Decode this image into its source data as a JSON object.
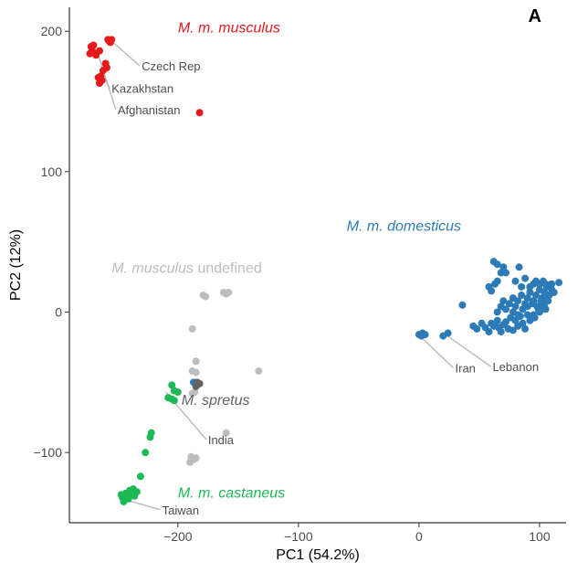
{
  "chart_data": {
    "type": "scatter",
    "panel_label": "A",
    "xlabel": "PC1 (54.2%)",
    "ylabel": "PC2 (12%)",
    "xlim": [
      -290,
      122
    ],
    "ylim": [
      -150,
      217
    ],
    "xticks": [
      -200,
      -100,
      0,
      100
    ],
    "yticks": [
      -100,
      0,
      100,
      200
    ],
    "xtick_labels": [
      "−200",
      "−100",
      "0",
      "100"
    ],
    "ytick_labels": [
      "−100",
      "0",
      "100",
      "200"
    ],
    "grid": false,
    "colors": {
      "musculus": "#e41a1c",
      "domesticus": "#2c7bb6",
      "undefined": "#bdbdbd",
      "spretus": "#636363",
      "castaneus": "#1db954",
      "annotation_line": "#bdbdbd"
    },
    "group_labels": [
      {
        "id": "musculus",
        "italic": "M. m. musculus",
        "plain": "",
        "x": -200,
        "y": 199,
        "anchor": "start"
      },
      {
        "id": "domesticus",
        "italic": "M. m. domesticus",
        "plain": "",
        "x": -60,
        "y": 58,
        "anchor": "start"
      },
      {
        "id": "undefined",
        "italic": "M. musculus",
        "plain": " undefined",
        "x": -255,
        "y": 28,
        "anchor": "start"
      },
      {
        "id": "spretus",
        "italic": "M. spretus",
        "plain": "",
        "x": -197,
        "y": -66,
        "anchor": "start"
      },
      {
        "id": "castaneus",
        "italic": "M. m. castaneus",
        "plain": "",
        "x": -200,
        "y": -132,
        "anchor": "start"
      }
    ],
    "annotations": [
      {
        "text": "Czech Rep",
        "point": [
          -255,
          193
        ],
        "label": [
          -230,
          172
        ],
        "anchor": "start"
      },
      {
        "text": "Kazakhstan",
        "point": [
          -263,
          170
        ],
        "label": [
          -255,
          156
        ],
        "anchor": "start"
      },
      {
        "text": "Afghanistan",
        "point": [
          -266,
          183
        ],
        "label": [
          -250,
          141
        ],
        "anchor": "start"
      },
      {
        "text": "Iran",
        "point": [
          2,
          -18
        ],
        "label": [
          30,
          -43
        ],
        "anchor": "start"
      },
      {
        "text": "Lebanon",
        "point": [
          22,
          -16
        ],
        "label": [
          61,
          -42
        ],
        "anchor": "start"
      },
      {
        "text": "India",
        "point": [
          -210,
          -57
        ],
        "label": [
          -175,
          -94
        ],
        "anchor": "start"
      },
      {
        "text": "Taiwan",
        "point": [
          -242,
          -134
        ],
        "label": [
          -213,
          -144
        ],
        "anchor": "start"
      }
    ],
    "series": [
      {
        "name": "M. m. musculus",
        "id": "musculus",
        "points": [
          [
            -272,
            189
          ],
          [
            -271,
            186
          ],
          [
            -270,
            190
          ],
          [
            -268,
            183
          ],
          [
            -273,
            184
          ],
          [
            -265,
            186
          ],
          [
            -258,
            194
          ],
          [
            -256,
            192
          ],
          [
            -257,
            193
          ],
          [
            -255,
            194
          ],
          [
            -260,
            177
          ],
          [
            -262,
            172
          ],
          [
            -259,
            174
          ],
          [
            -264,
            168
          ],
          [
            -266,
            167
          ],
          [
            -263,
            165
          ],
          [
            -265,
            163
          ],
          [
            -182,
            142
          ]
        ]
      },
      {
        "name": "M. m. domesticus",
        "id": "domesticus",
        "points": [
          [
            -187,
            -50
          ],
          [
            0,
            -16
          ],
          [
            3,
            -15
          ],
          [
            5,
            -16
          ],
          [
            2,
            -17
          ],
          [
            20,
            -17
          ],
          [
            24,
            -15
          ],
          [
            36,
            5
          ],
          [
            45,
            -10
          ],
          [
            48,
            -12
          ],
          [
            52,
            -8
          ],
          [
            55,
            -11
          ],
          [
            58,
            -14
          ],
          [
            60,
            -8
          ],
          [
            62,
            -10
          ],
          [
            65,
            -6
          ],
          [
            66,
            -11
          ],
          [
            68,
            -14
          ],
          [
            70,
            -9
          ],
          [
            72,
            -7
          ],
          [
            74,
            -12
          ],
          [
            76,
            -4
          ],
          [
            78,
            -13
          ],
          [
            80,
            -6
          ],
          [
            82,
            -10
          ],
          [
            84,
            -3
          ],
          [
            86,
            -8
          ],
          [
            88,
            -12
          ],
          [
            90,
            -2
          ],
          [
            92,
            -6
          ],
          [
            95,
            -2
          ],
          [
            65,
            0
          ],
          [
            68,
            4
          ],
          [
            70,
            8
          ],
          [
            72,
            2
          ],
          [
            75,
            6
          ],
          [
            78,
            10
          ],
          [
            80,
            4
          ],
          [
            82,
            8
          ],
          [
            85,
            12
          ],
          [
            88,
            6
          ],
          [
            90,
            10
          ],
          [
            92,
            14
          ],
          [
            95,
            8
          ],
          [
            97,
            12
          ],
          [
            100,
            16
          ],
          [
            102,
            10
          ],
          [
            104,
            14
          ],
          [
            106,
            18
          ],
          [
            108,
            12
          ],
          [
            110,
            16
          ],
          [
            98,
            4
          ],
          [
            100,
            0
          ],
          [
            103,
            6
          ],
          [
            105,
            2
          ],
          [
            107,
            8
          ],
          [
            96,
            -4
          ],
          [
            99,
            2
          ],
          [
            101,
            8
          ],
          [
            104,
            4
          ],
          [
            106,
            10
          ],
          [
            92,
            18
          ],
          [
            95,
            20
          ],
          [
            97,
            22
          ],
          [
            100,
            20
          ],
          [
            103,
            22
          ],
          [
            105,
            20
          ],
          [
            108,
            18
          ],
          [
            110,
            20
          ],
          [
            112,
            14
          ],
          [
            116,
            21
          ],
          [
            60,
            15
          ],
          [
            63,
            20
          ],
          [
            58,
            18
          ],
          [
            65,
            22
          ],
          [
            68,
            28
          ],
          [
            62,
            36
          ],
          [
            65,
            34
          ],
          [
            70,
            32
          ],
          [
            72,
            28
          ],
          [
            83,
            32
          ],
          [
            80,
            22
          ],
          [
            85,
            18
          ],
          [
            88,
            24
          ],
          [
            78,
            0
          ],
          [
            82,
            -2
          ],
          [
            86,
            2
          ],
          [
            90,
            4
          ],
          [
            94,
            6
          ]
        ]
      },
      {
        "name": "M. musculus undefined",
        "id": "undefined",
        "points": [
          [
            -162,
            14
          ],
          [
            -158,
            14
          ],
          [
            -160,
            13
          ],
          [
            -177,
            11
          ],
          [
            -179,
            12
          ],
          [
            -188,
            -12
          ],
          [
            -133,
            -42
          ],
          [
            -185,
            -35
          ],
          [
            -188,
            -42
          ],
          [
            -185,
            -43
          ],
          [
            -186,
            -57
          ],
          [
            -188,
            -58
          ],
          [
            -160,
            -86
          ],
          [
            -187,
            -105
          ],
          [
            -190,
            -107
          ],
          [
            -185,
            -104
          ],
          [
            -189,
            -103
          ]
        ]
      },
      {
        "name": "M. spretus",
        "id": "spretus",
        "points": [
          [
            -182,
            -51
          ],
          [
            -185,
            -53
          ],
          [
            -184,
            -50
          ]
        ]
      },
      {
        "name": "M. m. castaneus",
        "id": "castaneus",
        "points": [
          [
            -205,
            -52
          ],
          [
            -203,
            -56
          ],
          [
            -208,
            -61
          ],
          [
            -205,
            -62
          ],
          [
            -203,
            -63
          ],
          [
            -200,
            -57
          ],
          [
            -222,
            -86
          ],
          [
            -223,
            -89
          ],
          [
            -227,
            -100
          ],
          [
            -231,
            -117
          ],
          [
            -237,
            -126
          ],
          [
            -240,
            -127
          ],
          [
            -243,
            -131
          ],
          [
            -246,
            -132
          ],
          [
            -245,
            -135
          ],
          [
            -241,
            -133
          ],
          [
            -236,
            -131
          ],
          [
            -234,
            -128
          ],
          [
            -243,
            -129
          ],
          [
            -239,
            -130
          ],
          [
            -247,
            -130
          ]
        ]
      }
    ]
  }
}
